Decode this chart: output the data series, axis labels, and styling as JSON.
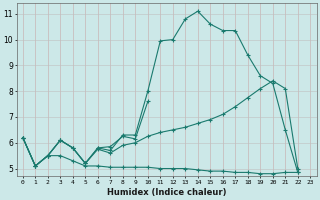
{
  "title": "",
  "xlabel": "Humidex (Indice chaleur)",
  "ylabel": "",
  "bg_color": "#cce8e8",
  "grid_color": "#b0c8c8",
  "line_color": "#1a7a6e",
  "xlim": [
    -0.5,
    23.5
  ],
  "ylim": [
    4.7,
    11.4
  ],
  "xticks": [
    0,
    1,
    2,
    3,
    4,
    5,
    6,
    7,
    8,
    9,
    10,
    11,
    12,
    13,
    14,
    15,
    16,
    17,
    18,
    19,
    20,
    21,
    22,
    23
  ],
  "yticks": [
    5,
    6,
    7,
    8,
    9,
    10,
    11
  ],
  "series": [
    {
      "x": [
        0,
        1,
        2,
        3,
        4,
        5,
        6,
        7,
        8,
        9,
        10,
        11,
        12,
        13,
        14,
        15,
        16,
        17,
        18,
        19,
        20,
        21,
        22
      ],
      "y": [
        6.2,
        5.1,
        5.5,
        6.1,
        5.8,
        5.2,
        5.8,
        5.7,
        6.3,
        6.3,
        8.0,
        9.95,
        10.0,
        10.8,
        11.1,
        10.6,
        10.35,
        10.35,
        9.4,
        8.6,
        8.3,
        6.5,
        4.85
      ]
    },
    {
      "x": [
        0,
        1,
        2,
        3,
        4,
        5,
        6,
        7,
        8,
        9,
        10
      ],
      "y": [
        6.2,
        5.1,
        5.5,
        6.1,
        5.8,
        5.2,
        5.8,
        5.85,
        6.25,
        6.15,
        7.6
      ]
    },
    {
      "x": [
        0,
        1,
        2,
        3,
        4,
        5,
        6,
        7,
        8,
        9,
        10,
        11,
        12,
        13,
        14,
        15,
        16,
        17,
        18,
        19,
        20,
        21,
        22
      ],
      "y": [
        6.2,
        5.1,
        5.5,
        6.1,
        5.8,
        5.2,
        5.75,
        5.6,
        5.9,
        6.0,
        6.25,
        6.4,
        6.5,
        6.6,
        6.75,
        6.9,
        7.1,
        7.4,
        7.75,
        8.1,
        8.4,
        8.1,
        5.0
      ]
    },
    {
      "x": [
        0,
        1,
        2,
        3,
        4,
        5,
        6,
        7,
        8,
        9,
        10,
        11,
        12,
        13,
        14,
        15,
        16,
        17,
        18,
        19,
        20,
        21,
        22
      ],
      "y": [
        6.2,
        5.1,
        5.5,
        5.5,
        5.3,
        5.1,
        5.1,
        5.05,
        5.05,
        5.05,
        5.05,
        5.0,
        5.0,
        5.0,
        4.95,
        4.9,
        4.9,
        4.85,
        4.85,
        4.8,
        4.8,
        4.85,
        4.85
      ]
    }
  ]
}
